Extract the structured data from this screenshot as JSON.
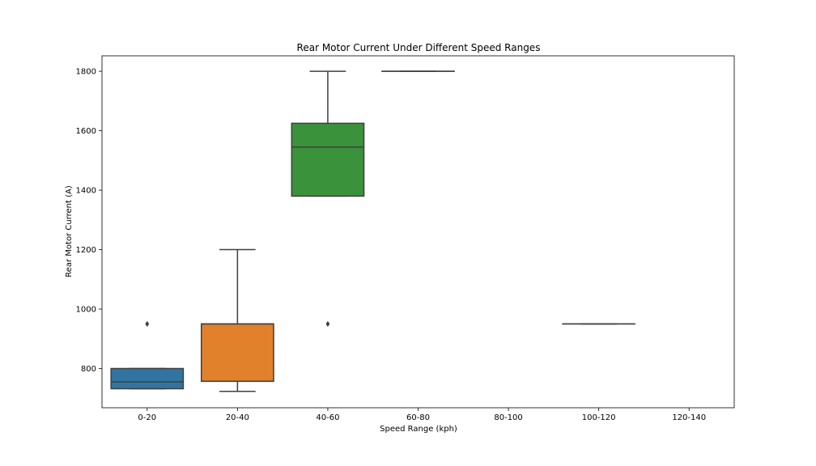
{
  "chart_data": {
    "type": "box",
    "title": "Rear Motor Current Under Different Speed Ranges",
    "xlabel": "Speed Range (kph)",
    "ylabel": "Rear Motor Current (A)",
    "categories": [
      "0-20",
      "20-40",
      "40-60",
      "60-80",
      "80-100",
      "100-120",
      "120-140"
    ],
    "ylim": [
      668,
      1852
    ],
    "yticks": [
      800,
      1000,
      1200,
      1400,
      1600,
      1800
    ],
    "grid": false,
    "legend": "none",
    "boxes": [
      {
        "category": "0-20",
        "color": "#3274a1",
        "whisker_low": 732,
        "q1": 732,
        "median": 755,
        "q3": 800,
        "whisker_high": 800,
        "outliers": [
          950
        ]
      },
      {
        "category": "20-40",
        "color": "#e1812c",
        "whisker_low": 723,
        "q1": 757,
        "median": 950,
        "q3": 950,
        "whisker_high": 1200,
        "outliers": []
      },
      {
        "category": "40-60",
        "color": "#3a923a",
        "whisker_low": 1380,
        "q1": 1380,
        "median": 1545,
        "q3": 1625,
        "whisker_high": 1800,
        "outliers": [
          950
        ]
      },
      {
        "category": "60-80",
        "color": "#c03d3e",
        "whisker_low": 1800,
        "q1": 1800,
        "median": 1800,
        "q3": 1800,
        "whisker_high": 1800,
        "outliers": []
      },
      {
        "category": "80-100",
        "color": "#9372b2",
        "empty": true
      },
      {
        "category": "100-120",
        "color": "#845b53",
        "whisker_low": 950,
        "q1": 950,
        "median": 950,
        "q3": 950,
        "whisker_high": 950,
        "outliers": []
      },
      {
        "category": "120-140",
        "color": "#d684bd",
        "empty": true
      }
    ]
  }
}
